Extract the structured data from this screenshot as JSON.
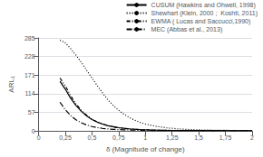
{
  "chart_data": {
    "type": "line",
    "xlabel": "δ (Magnitude of change)",
    "ylabel": "ARL₁",
    "x": [
      0.2,
      0.25,
      0.3,
      0.35,
      0.4,
      0.45,
      0.5,
      0.55,
      0.6,
      0.65,
      0.7,
      0.75,
      0.8,
      0.85,
      0.9,
      0.95,
      1.0,
      1.1,
      1.2,
      1.3,
      1.4,
      1.5,
      1.6,
      1.7,
      1.8,
      1.9,
      2.0
    ],
    "series": [
      {
        "name": "CUSUM (Hawkins and Ohwell, 1998)",
        "color": "#000000",
        "line_style": "solid",
        "values": [
          152,
          128,
          100,
          78,
          60,
          46,
          35,
          27,
          21,
          16,
          13,
          10,
          8,
          6.5,
          5.3,
          4.4,
          3.7,
          2.7,
          2.1,
          1.7,
          1.4,
          1.2,
          1.1,
          1.05,
          1.02,
          1.01,
          1.0
        ]
      },
      {
        "name": "Shewhart (Klein, 2000 ;  Koshti, 2011)",
        "color": "#000000",
        "line_style": "dotted",
        "values": [
          278,
          270,
          252,
          232,
          210,
          186,
          162,
          138,
          116,
          95,
          78,
          63,
          51,
          41,
          33,
          26,
          21,
          14,
          9.5,
          6.5,
          4.5,
          3.3,
          2.5,
          2.0,
          1.7,
          1.5,
          1.3
        ]
      },
      {
        "name": "EWMA ( Lucas and Saccucci,1990)",
        "color": "#000000",
        "line_style": "dashdotdot",
        "values": [
          162,
          138,
          108,
          83,
          63,
          48,
          36,
          27,
          21,
          16,
          12,
          9.5,
          7.5,
          6.0,
          4.8,
          3.9,
          3.2,
          2.3,
          1.8,
          1.5,
          1.3,
          1.15,
          1.07,
          1.04,
          1.02,
          1.01,
          1.0
        ]
      },
      {
        "name": "MEC (Abbas et al., 2013)",
        "color": "#000000",
        "line_style": "dashdot",
        "values": [
          88,
          65,
          47,
          34,
          25,
          18,
          13.5,
          10,
          7.8,
          6.2,
          5.0,
          4.1,
          3.4,
          2.9,
          2.5,
          2.1,
          1.85,
          1.5,
          1.3,
          1.15,
          1.07,
          1.04,
          1.02,
          1.01,
          1.0,
          1.0,
          1.0
        ]
      }
    ],
    "xlim": [
      0,
      2
    ],
    "ylim": [
      0,
      285
    ],
    "xticks": [
      0,
      {
        "value": 0.25,
        "label": "0,25"
      },
      {
        "value": 0.5,
        "label": "0,5"
      },
      {
        "value": 0.75,
        "label": "0,75"
      },
      1,
      {
        "value": 1.25,
        "label": "1,25"
      },
      {
        "value": 1.5,
        "label": "1,5"
      },
      {
        "value": 1.75,
        "label": "1,75"
      },
      2
    ],
    "yticks": [
      0,
      57,
      114,
      171,
      228,
      285
    ],
    "grid": "y",
    "legend": "upper right"
  }
}
